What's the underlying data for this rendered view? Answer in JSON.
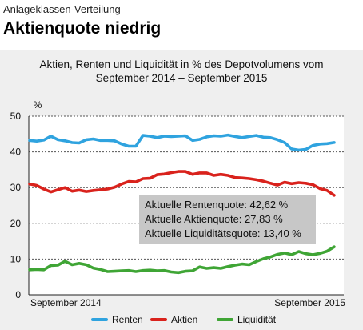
{
  "header": {
    "kicker": "Anlageklassen-Verteilung",
    "headline": "Aktienquote niedrig"
  },
  "chart_data": {
    "type": "line",
    "title_line1": "Aktien, Renten und Liquidität in % des Depotvolumens vom",
    "title_line2": "September 2014 – September 2015",
    "ylabel": "%",
    "ylim": [
      0,
      50
    ],
    "yticks": [
      0,
      10,
      20,
      30,
      40,
      50
    ],
    "x_labels": [
      "September 2014",
      "September 2015"
    ],
    "grid": true,
    "legend_position": "bottom",
    "colors": {
      "Renten": "#2fa3df",
      "Aktien": "#d9221c",
      "Liquidität": "#3fa535"
    },
    "series": [
      {
        "name": "Renten",
        "values": [
          43.2,
          43.0,
          43.3,
          44.4,
          43.4,
          43.1,
          42.6,
          42.5,
          43.4,
          43.6,
          43.2,
          43.2,
          43.1,
          42.2,
          41.6,
          41.6,
          44.6,
          44.4,
          44.0,
          44.4,
          44.3,
          44.4,
          44.5,
          43.2,
          43.5,
          44.2,
          44.5,
          44.4,
          44.7,
          44.3,
          44.0,
          44.3,
          44.6,
          44.1,
          44.0,
          43.4,
          42.6,
          40.8,
          40.5,
          40.7,
          41.8,
          42.2,
          42.3,
          42.62
        ]
      },
      {
        "name": "Aktien",
        "values": [
          31.0,
          30.6,
          29.6,
          28.8,
          29.4,
          30.0,
          29.0,
          29.3,
          28.9,
          29.2,
          29.4,
          29.6,
          30.1,
          31.0,
          31.7,
          31.6,
          32.5,
          32.6,
          33.6,
          33.8,
          34.2,
          34.5,
          34.5,
          33.7,
          34.1,
          34.1,
          33.4,
          33.7,
          33.4,
          32.8,
          32.7,
          32.5,
          32.2,
          31.8,
          31.2,
          30.7,
          31.5,
          31.1,
          31.4,
          31.2,
          30.8,
          29.7,
          29.2,
          27.83
        ]
      },
      {
        "name": "Liquidität",
        "values": [
          7.0,
          7.1,
          7.0,
          8.2,
          8.3,
          9.4,
          8.4,
          8.8,
          8.4,
          7.5,
          7.1,
          6.5,
          6.6,
          6.7,
          6.8,
          6.5,
          6.8,
          6.9,
          6.7,
          6.8,
          6.4,
          6.2,
          6.6,
          6.7,
          7.8,
          7.4,
          7.6,
          7.4,
          7.9,
          8.3,
          8.6,
          8.4,
          9.3,
          10.1,
          10.6,
          11.3,
          11.7,
          11.2,
          12.1,
          11.5,
          11.2,
          11.6,
          12.2,
          13.4
        ]
      }
    ],
    "annotations": [
      "Aktuelle Rentenquote: 42,62 %",
      "Aktuelle Aktienquote: 27,83 %",
      "Aktuelle Liquiditätsquote: 13,40 %"
    ]
  }
}
